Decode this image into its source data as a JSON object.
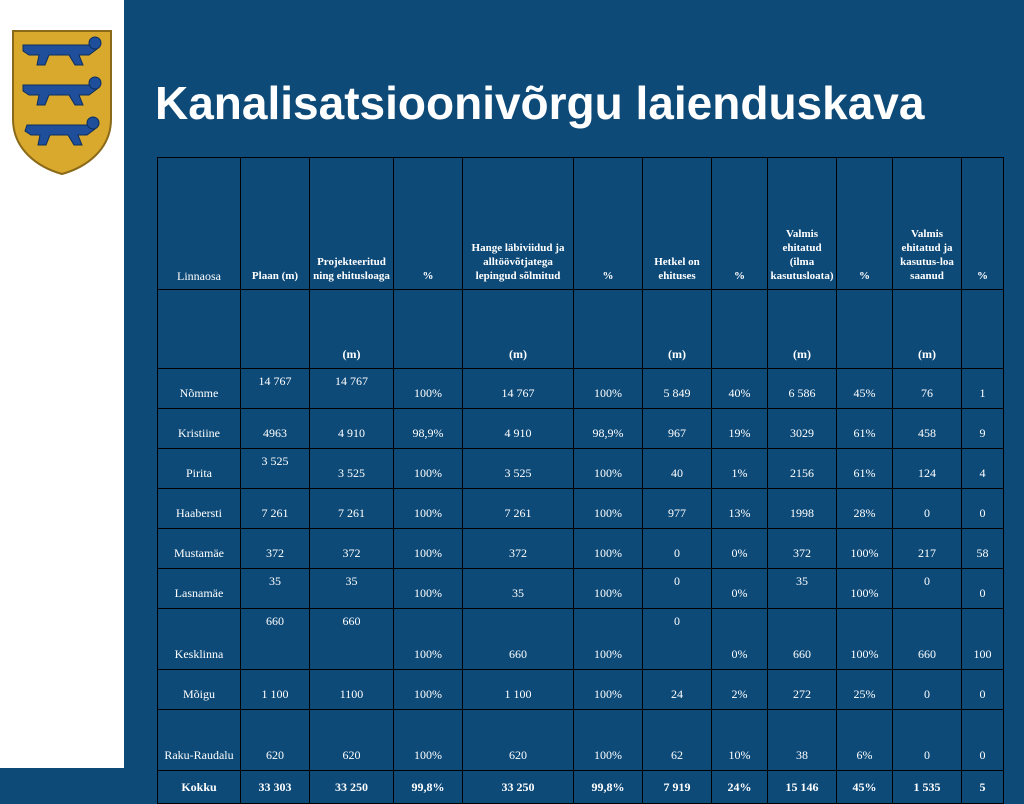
{
  "title": "Kanalisatsioonivõrgu laienduskava",
  "header": [
    "Linnaosa",
    "Plaan (m)",
    "Projekteeritud ning ehitusloaga",
    "%",
    "Hange läbiviidud ja alltöövõtjatega lepingud sõlmitud",
    "%",
    "Hetkel on ehituses",
    "%",
    "Valmis ehitatud (ilma kasutusloata)",
    "%",
    "Valmis ehitatud ja kasutus-loa saanud",
    "%"
  ],
  "units": [
    "",
    "",
    "(m)",
    "",
    "(m)",
    "",
    "(m)",
    "",
    "(m)",
    "",
    "(m)",
    ""
  ],
  "rows": [
    [
      "Nõmme",
      "14 767",
      "14 767",
      "100%",
      "14 767",
      "100%",
      "5 849",
      "40%",
      "6 586",
      "45%",
      "76",
      "1"
    ],
    [
      "Kristiine",
      "4963",
      "4 910",
      "98,9%",
      "4 910",
      "98,9%",
      "967",
      "19%",
      "3029",
      "61%",
      "458",
      "9"
    ],
    [
      "Pirita",
      "3 525",
      "3 525",
      "100%",
      "3 525",
      "100%",
      "40",
      "1%",
      "2156",
      "61%",
      "124",
      "4"
    ],
    [
      "Haabersti",
      "7 261",
      "7 261",
      "100%",
      "7 261",
      "100%",
      "977",
      "13%",
      "1998",
      "28%",
      "0",
      "0"
    ],
    [
      "Mustamäe",
      "372",
      "372",
      "100%",
      "372",
      "100%",
      "0",
      "0%",
      "372",
      "100%",
      "217",
      "58"
    ],
    [
      "Lasnamäe",
      "35",
      "35",
      "100%",
      "35",
      "100%",
      "0",
      "0%",
      "35",
      "100%",
      "0",
      "0"
    ],
    [
      "Kesklinna",
      "660",
      "660",
      "100%",
      "660",
      "100%",
      "0",
      "0%",
      "660",
      "100%",
      "660",
      "100"
    ],
    [
      "Mõigu",
      "1 100",
      "1100",
      "100%",
      "1 100",
      "100%",
      "24",
      "2%",
      "272",
      "25%",
      "0",
      "0"
    ],
    [
      "Raku-Raudalu",
      "620",
      "620",
      "100%",
      "620",
      "100%",
      "62",
      "10%",
      "38",
      "6%",
      "0",
      "0"
    ]
  ],
  "total": [
    "Kokku",
    "33 303",
    "33 250",
    "99,8%",
    "33 250",
    "99,8%",
    "7 919",
    "24%",
    "15 146",
    "45%",
    "1 535",
    "5"
  ],
  "colors": {
    "background": "#0d4a78",
    "strip": "#ffffff",
    "text": "#ffffff",
    "emblem_gold": "#d9a92e",
    "emblem_blue": "#1f4f9a"
  },
  "emblem": "coat-of-arms-icon"
}
